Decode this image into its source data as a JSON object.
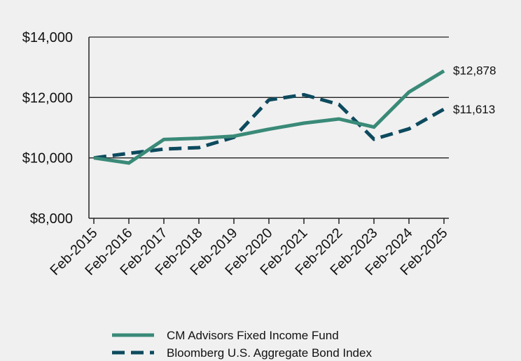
{
  "chart_data": {
    "type": "line",
    "categories": [
      "Feb-2015",
      "Feb-2016",
      "Feb-2017",
      "Feb-2018",
      "Feb-2019",
      "Feb-2020",
      "Feb-2021",
      "Feb-2022",
      "Feb-2023",
      "Feb-2024",
      "Feb-2025"
    ],
    "series": [
      {
        "name": "CM Advisors Fixed Income Fund",
        "values": [
          10000,
          9830,
          10610,
          10650,
          10720,
          10950,
          11150,
          11290,
          11020,
          12180,
          12878
        ],
        "color": "#3a8a78",
        "style": "solid",
        "end_label": "$12,878"
      },
      {
        "name": "Bloomberg U.S. Aggregate Bond Index",
        "values": [
          10000,
          10150,
          10290,
          10340,
          10680,
          11920,
          12090,
          11770,
          10620,
          10960,
          11613
        ],
        "color": "#0d4a5e",
        "style": "dashed",
        "end_label": "$11,613"
      }
    ],
    "ylim": [
      8000,
      14000
    ],
    "yticks": [
      8000,
      10000,
      12000,
      14000
    ],
    "ytick_labels": [
      "$8,000",
      "$10,000",
      "$12,000",
      "$14,000"
    ],
    "grid": true,
    "legend_position": "bottom"
  }
}
